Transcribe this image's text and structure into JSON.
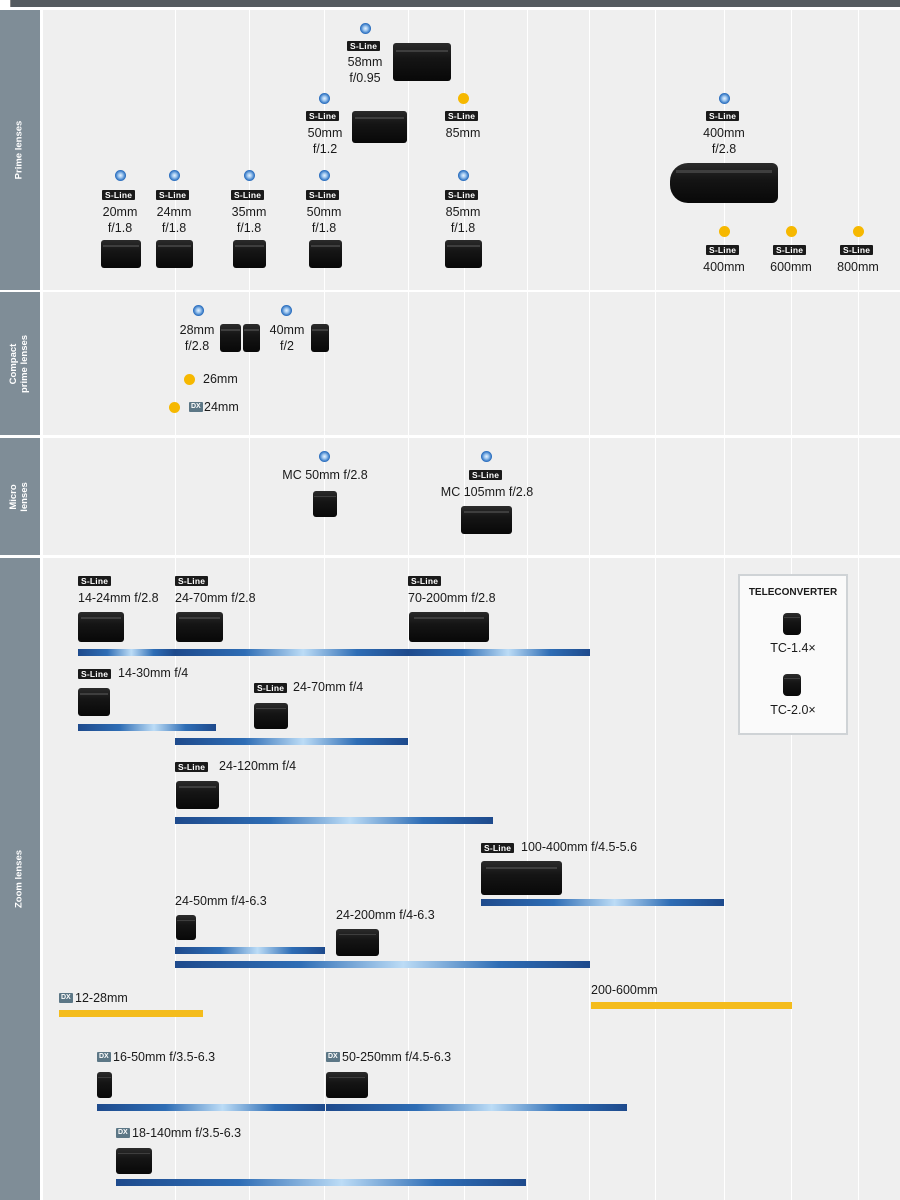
{
  "sections": {
    "prime": "Prime lenses",
    "compact_line1": "Compact",
    "compact_line2": "prime lenses",
    "micro_line1": "Micro",
    "micro_line2": "lenses",
    "zoom": "Zoom lenses"
  },
  "badges": {
    "sline": "S-Line",
    "dx": "DX"
  },
  "prime": {
    "l58": [
      "58mm",
      "f/0.95"
    ],
    "l50_12": [
      "50mm",
      "f/1.2"
    ],
    "l85_planned": "85mm",
    "l400_28": [
      "400mm",
      "f/2.8"
    ],
    "l20": [
      "20mm",
      "f/1.8"
    ],
    "l24": [
      "24mm",
      "f/1.8"
    ],
    "l35": [
      "35mm",
      "f/1.8"
    ],
    "l50_18": [
      "50mm",
      "f/1.8"
    ],
    "l85_18": [
      "85mm",
      "f/1.8"
    ],
    "planned_teles": [
      "400mm",
      "600mm",
      "800mm"
    ]
  },
  "compact": {
    "l28": [
      "28mm",
      "f/2.8"
    ],
    "l40": [
      "40mm",
      "f/2"
    ],
    "l26": "26mm",
    "l24dx": "24mm"
  },
  "micro": {
    "mc50": "MC 50mm f/2.8",
    "mc105": "MC 105mm f/2.8"
  },
  "zoom": {
    "z14_24": "14-24mm f/2.8",
    "z24_70_28": "24-70mm f/2.8",
    "z70_200": "70-200mm f/2.8",
    "z14_30": "14-30mm f/4",
    "z24_70_4": "24-70mm f/4",
    "z24_120": "24-120mm f/4",
    "z100_400": "100-400mm f/4.5-5.6",
    "z24_50": "24-50mm f/4-6.3",
    "z24_200": "24-200mm f/4-6.3",
    "z12_28": "12-28mm",
    "z200_600": "200-600mm",
    "z16_50": "16-50mm f/3.5-6.3",
    "z50_250": "50-250mm f/4.5-6.3",
    "z18_140": "18-140mm f/3.5-6.3"
  },
  "teleconverter": {
    "title": "TELECONVERTER",
    "tc14": "TC-1.4×",
    "tc20": "TC-2.0×"
  },
  "colors": {
    "available": "#2a6fc0",
    "planned": "#f6b800",
    "sidebar": "#7f8d97",
    "panel": "#efefef"
  }
}
